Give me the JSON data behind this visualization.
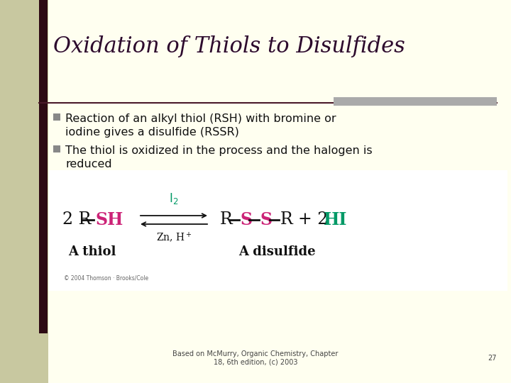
{
  "title": "Oxidation of Thiols to Disulfides",
  "bg_color": "#f5f5d0",
  "content_bg": "#fffff0",
  "left_bar_color": "#2d0a14",
  "left_bar_bg": "#c8c8a0",
  "title_color": "#2d0a2d",
  "title_fontsize": 22,
  "bullet_color": "#888888",
  "bullet_text_color": "#111111",
  "bullet1_line1": "Reaction of an alkyl thiol (RSH) with bromine or",
  "bullet1_line2": "iodine gives a disulfide (RSSR)",
  "bullet2_line1": "The thiol is oxidized in the process and the halogen is",
  "bullet2_line2": "reduced",
  "sep_color": "#4a1a2a",
  "sep_right_color": "#aaaaaa",
  "footer_text": "Based on McMurry, Organic Chemistry, Chapter\n18, 6th edition, (c) 2003",
  "footer_page": "27",
  "footer_color": "#444444",
  "footer_fontsize": 7,
  "rxn_box_bg": "#ffffff",
  "black_color": "#111111",
  "pink_color": "#cc2277",
  "teal_color": "#009966",
  "copyright_text": "© 2004 Thomson · Brooks/Cole"
}
